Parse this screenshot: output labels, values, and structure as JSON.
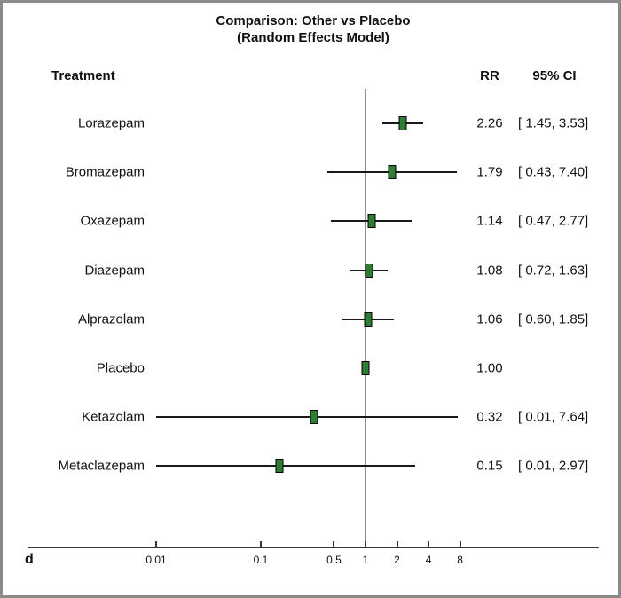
{
  "title": {
    "line1": "Comparison: Other vs Placebo",
    "line2": "(Random Effects Model)"
  },
  "columns": {
    "treatment": "Treatment",
    "rr": "RR",
    "ci": "95% CI"
  },
  "panel_label": "d",
  "colors": {
    "marker_fill": "#2e7d32",
    "marker_border": "#000000",
    "ci_line": "#1a1a1a",
    "reference_line": "#8f8f8f",
    "axis_line": "#3a3a3a",
    "frame_border": "#8a8a8a",
    "text": "#111111"
  },
  "chart_data": {
    "type": "forest",
    "title": "Comparison: Other vs Placebo (Random Effects Model)",
    "effect_measure": "RR",
    "reference_value": 1,
    "x_axis": {
      "scale": "log",
      "ticks": [
        0.01,
        0.1,
        0.5,
        1,
        2,
        4,
        8
      ],
      "tick_labels": [
        "0.01",
        "0.1",
        "0.5",
        "1",
        "2",
        "4",
        "8"
      ]
    },
    "rows": [
      {
        "treatment": "Lorazepam",
        "rr": 2.26,
        "ci_low": 1.45,
        "ci_high": 3.53,
        "rr_label": "2.26",
        "ci_label": "[ 1.45, 3.53]"
      },
      {
        "treatment": "Bromazepam",
        "rr": 1.79,
        "ci_low": 0.43,
        "ci_high": 7.4,
        "rr_label": "1.79",
        "ci_label": "[ 0.43, 7.40]"
      },
      {
        "treatment": "Oxazepam",
        "rr": 1.14,
        "ci_low": 0.47,
        "ci_high": 2.77,
        "rr_label": "1.14",
        "ci_label": "[ 0.47, 2.77]"
      },
      {
        "treatment": "Diazepam",
        "rr": 1.08,
        "ci_low": 0.72,
        "ci_high": 1.63,
        "rr_label": "1.08",
        "ci_label": "[ 0.72, 1.63]"
      },
      {
        "treatment": "Alprazolam",
        "rr": 1.06,
        "ci_low": 0.6,
        "ci_high": 1.85,
        "rr_label": "1.06",
        "ci_label": "[ 0.60, 1.85]"
      },
      {
        "treatment": "Placebo",
        "rr": 1.0,
        "ci_low": null,
        "ci_high": null,
        "rr_label": "1.00",
        "ci_label": ""
      },
      {
        "treatment": "Ketazolam",
        "rr": 0.32,
        "ci_low": 0.01,
        "ci_high": 7.64,
        "rr_label": "0.32",
        "ci_label": "[ 0.01, 7.64]"
      },
      {
        "treatment": "Metaclazepam",
        "rr": 0.15,
        "ci_low": 0.01,
        "ci_high": 2.97,
        "rr_label": "0.15",
        "ci_label": "[ 0.01, 2.97]"
      }
    ]
  }
}
